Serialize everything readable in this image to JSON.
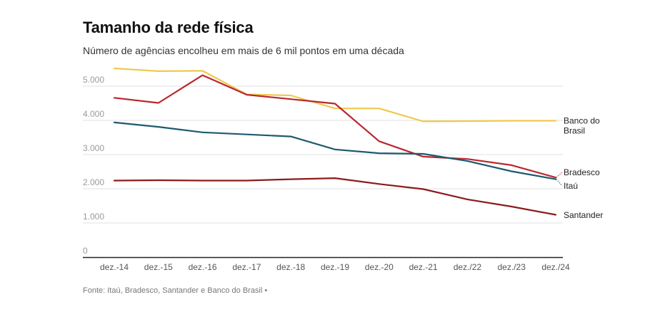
{
  "header": {
    "title": "Tamanho da rede física",
    "subtitle": "Número de agências encolheu em mais de 6 mil pontos em uma década"
  },
  "footer": {
    "source": "Fonte: Itaú, Bradesco, Santander e Banco do Brasil •"
  },
  "chart_data": {
    "type": "line",
    "title": "Tamanho da rede física",
    "subtitle": "Número de agências encolheu em mais de 6 mil pontos em uma década",
    "xlabel": "",
    "ylabel": "",
    "categories": [
      "dez.-14",
      "dez.-15",
      "dez.-16",
      "dez.-17",
      "dez.-18",
      "dez.-19",
      "dez.-20",
      "dez.-21",
      "dez./22",
      "dez./23",
      "dez./24"
    ],
    "ylim": [
      0,
      5500
    ],
    "yticks": [
      0,
      1000,
      2000,
      3000,
      4000,
      5000
    ],
    "ytick_labels": [
      "0",
      "1.000",
      "2.000",
      "3.000",
      "4.000",
      "5.000"
    ],
    "grid": true,
    "legend": "direct-labels-right",
    "series": [
      {
        "name": "Banco do Brasil",
        "label_lines": [
          "Banco do",
          "Brasil"
        ],
        "color": "#f0c94f",
        "values": [
          5520,
          5440,
          5450,
          4760,
          4730,
          4350,
          4350,
          3970,
          3980,
          3990,
          3990
        ]
      },
      {
        "name": "Bradesco",
        "label_lines": [
          "Bradesco"
        ],
        "color": "#b8282d",
        "values": [
          4660,
          4510,
          5320,
          4750,
          4620,
          4490,
          3390,
          2940,
          2870,
          2690,
          2330
        ]
      },
      {
        "name": "Itaú",
        "label_lines": [
          "Itaú"
        ],
        "color": "#1d5a6e",
        "values": [
          3940,
          3810,
          3650,
          3590,
          3530,
          3150,
          3040,
          3020,
          2810,
          2510,
          2280
        ]
      },
      {
        "name": "Santander",
        "label_lines": [
          "Santander"
        ],
        "color": "#8a1c1c",
        "values": [
          2240,
          2250,
          2240,
          2240,
          2280,
          2310,
          2140,
          1990,
          1690,
          1480,
          1240
        ]
      }
    ]
  }
}
